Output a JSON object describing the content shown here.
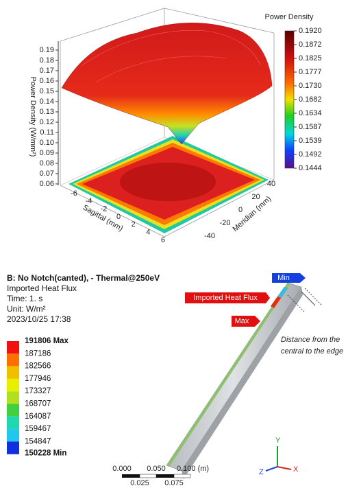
{
  "surface_plot": {
    "colorbar_title": "Power Density",
    "colorbar_labels": [
      "0.1920",
      "0.1872",
      "0.1825",
      "0.1777",
      "0.1730",
      "0.1682",
      "0.1634",
      "0.1587",
      "0.1539",
      "0.1492",
      "0.1444"
    ],
    "z_label": "Power Density (W/mm²)",
    "z_ticks": [
      "0.19",
      "0.18",
      "0.17",
      "0.16",
      "0.15",
      "0.14",
      "0.13",
      "0.12",
      "0.11",
      "0.10",
      "0.09",
      "0.08",
      "0.07",
      "0.06"
    ],
    "x_label": "Sagittal (mm)",
    "x_ticks": [
      "-6",
      "-4",
      "-2",
      "0",
      "2",
      "4",
      "6"
    ],
    "y_label": "Meridian (mm)",
    "y_ticks": [
      "40",
      "20",
      "0",
      "-20",
      "-40"
    ]
  },
  "simulation": {
    "header": [
      "B: No Notch(canted), - Thermal@250eV",
      "Imported Heat Flux",
      "Time: 1. s",
      "Unit: W/m²",
      "2023/10/25 17:38"
    ],
    "legend": [
      "191806 Max",
      "187186",
      "182566",
      "177946",
      "173327",
      "168707",
      "164087",
      "159467",
      "154847",
      "150228 Min"
    ],
    "tags": {
      "min": "Min",
      "load": "Imported Heat Flux",
      "max": "Max"
    },
    "note": [
      "Distance from the",
      "central to the edge"
    ],
    "scale_top": [
      "0.000",
      "0.050",
      "0.100 (m)"
    ],
    "scale_bottom": [
      "0.025",
      "0.075"
    ],
    "axes": {
      "x": "X",
      "y": "Y",
      "z": "Z"
    }
  }
}
